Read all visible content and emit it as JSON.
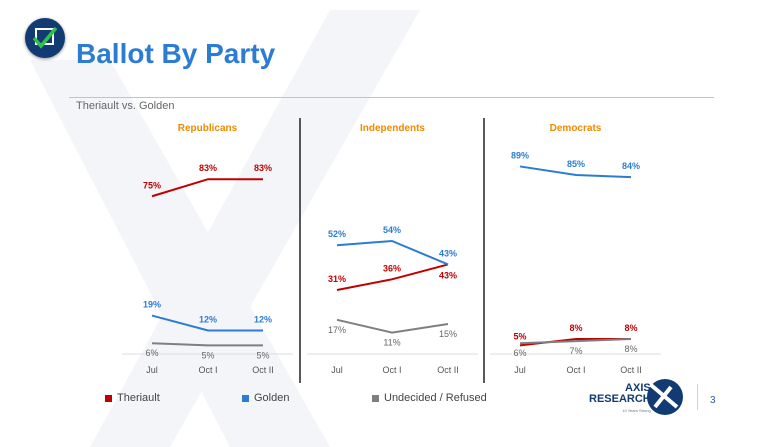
{
  "header": {
    "title": "Ballot By Party",
    "subtitle": "Theriault vs. Golden"
  },
  "legend": [
    "Theriault",
    "Golden",
    "Undecided / Refused"
  ],
  "footer": {
    "brand_line1": "AXIS",
    "brand_line2": "RESEARCH",
    "brand_tagline": "10 Years Strong",
    "page_number": "3"
  },
  "colors": {
    "Theriault": "#c00000",
    "Golden": "#2b7cd3",
    "Undecided / Refused": "#7f7f7f",
    "panel_title": "#f08a00"
  },
  "chart_data": [
    {
      "type": "line",
      "title": "Republicans",
      "categories": [
        "Jul",
        "Oct I",
        "Oct II"
      ],
      "ylim": [
        0,
        100
      ],
      "series": [
        {
          "name": "Theriault",
          "values": [
            75,
            83,
            83
          ]
        },
        {
          "name": "Golden",
          "values": [
            19,
            12,
            12
          ]
        },
        {
          "name": "Undecided / Refused",
          "values": [
            6,
            5,
            5
          ]
        }
      ]
    },
    {
      "type": "line",
      "title": "Independents",
      "categories": [
        "Jul",
        "Oct I",
        "Oct II"
      ],
      "ylim": [
        0,
        100
      ],
      "series": [
        {
          "name": "Theriault",
          "values": [
            31,
            36,
            43
          ]
        },
        {
          "name": "Golden",
          "values": [
            52,
            54,
            43
          ]
        },
        {
          "name": "Undecided / Refused",
          "values": [
            17,
            11,
            15
          ]
        }
      ]
    },
    {
      "type": "line",
      "title": "Democrats",
      "categories": [
        "Jul",
        "Oct I",
        "Oct II"
      ],
      "ylim": [
        0,
        100
      ],
      "series": [
        {
          "name": "Theriault",
          "values": [
            5,
            8,
            8
          ]
        },
        {
          "name": "Golden",
          "values": [
            89,
            85,
            84
          ]
        },
        {
          "name": "Undecided / Refused",
          "values": [
            6,
            7,
            8
          ]
        }
      ]
    }
  ]
}
